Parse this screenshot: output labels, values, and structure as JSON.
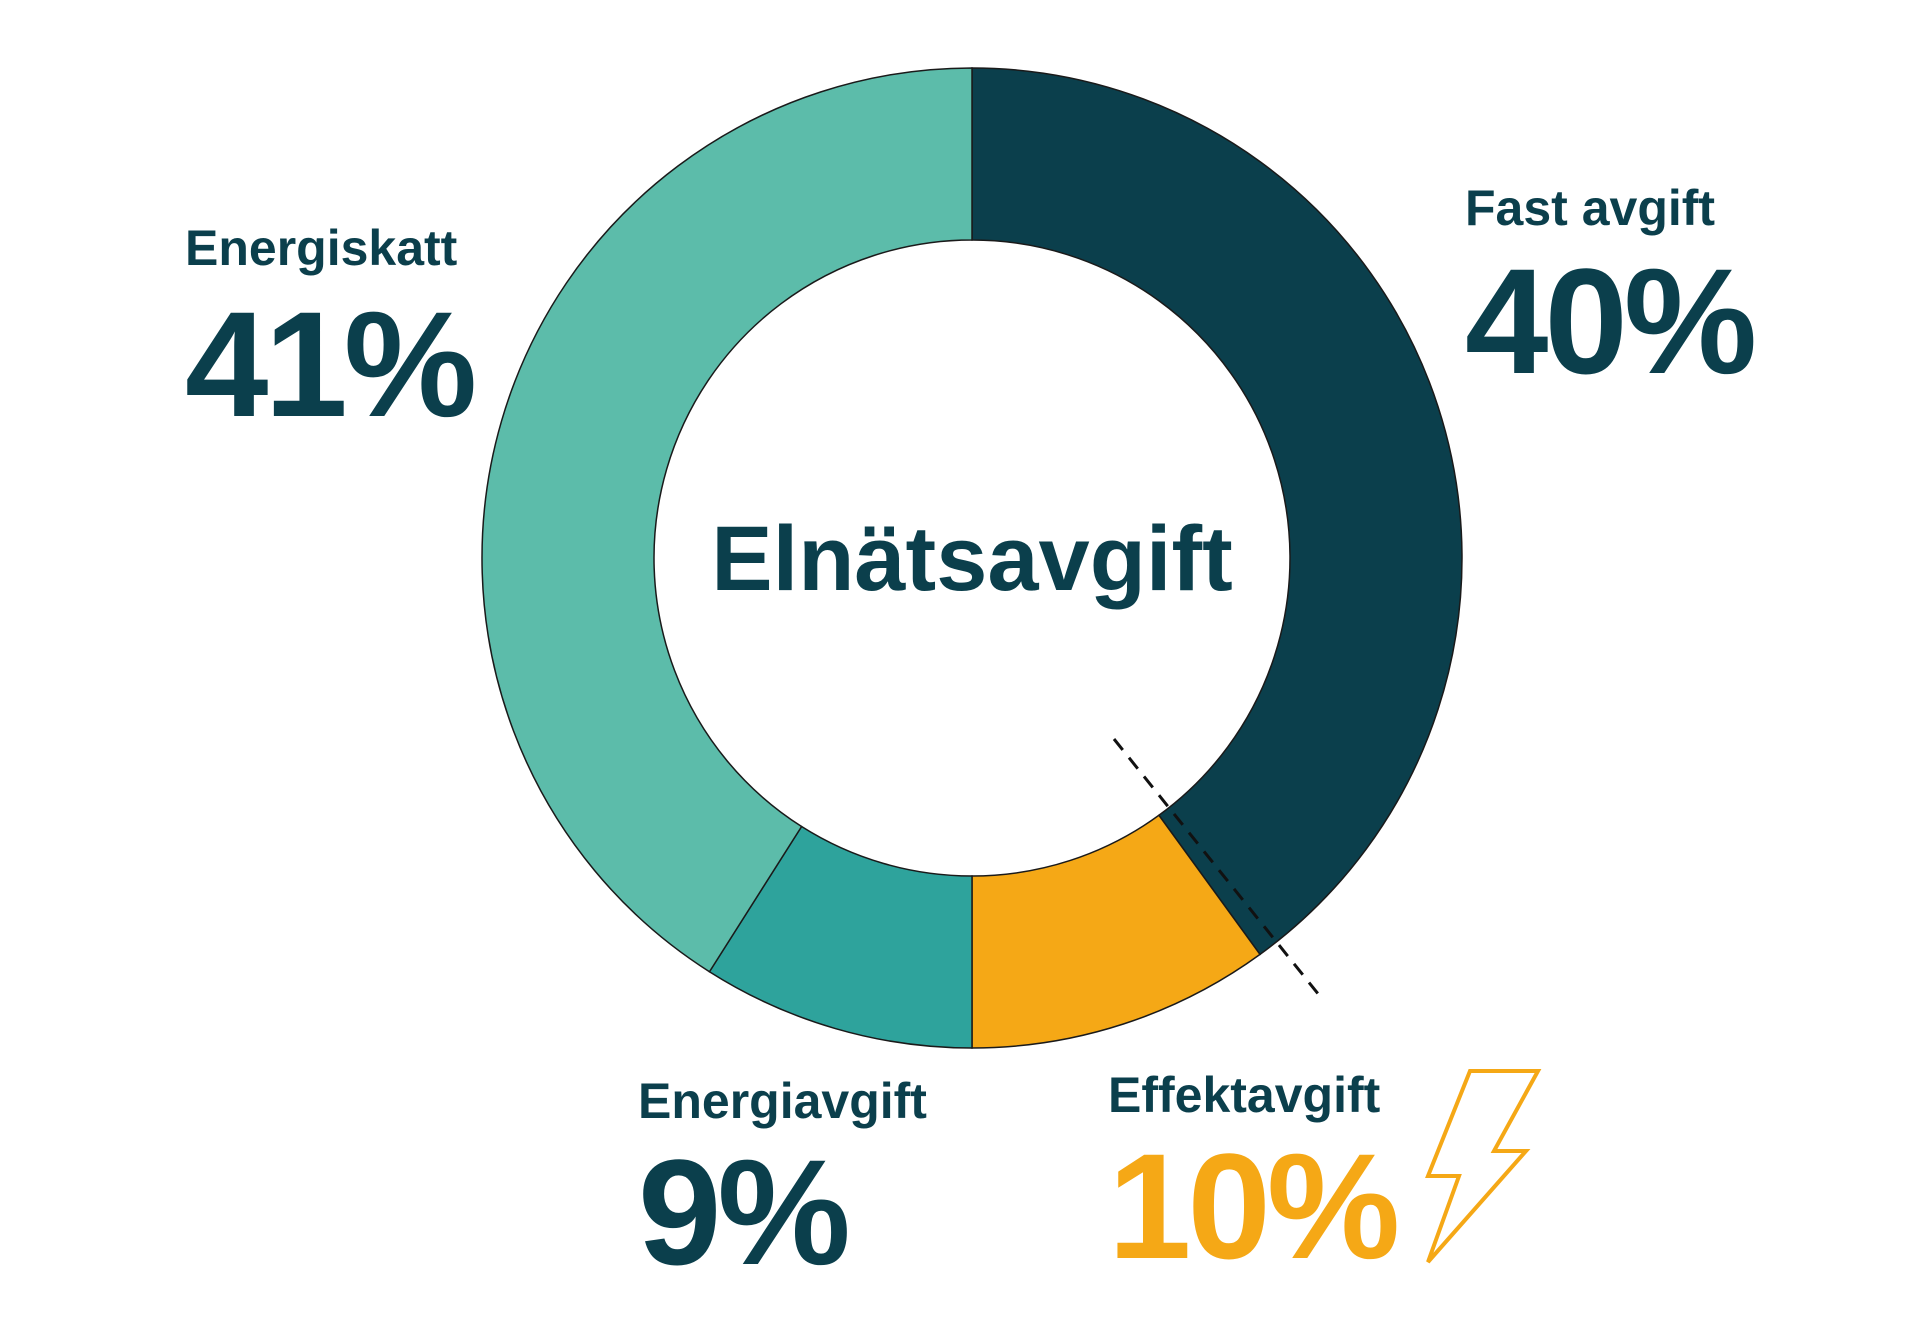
{
  "chart_data": {
    "type": "pie",
    "center_label": "Elnätsavgift",
    "categories": [
      "Fast avgift",
      "Effektavgift",
      "Energiavgift",
      "Energiskatt"
    ],
    "values": [
      40,
      10,
      9,
      41
    ],
    "value_labels": [
      "40%",
      "10%",
      "9%",
      "41%"
    ],
    "colors": [
      "#0b3f4c",
      "#f5a816",
      "#2ea39c",
      "#5cbcaa"
    ]
  }
}
